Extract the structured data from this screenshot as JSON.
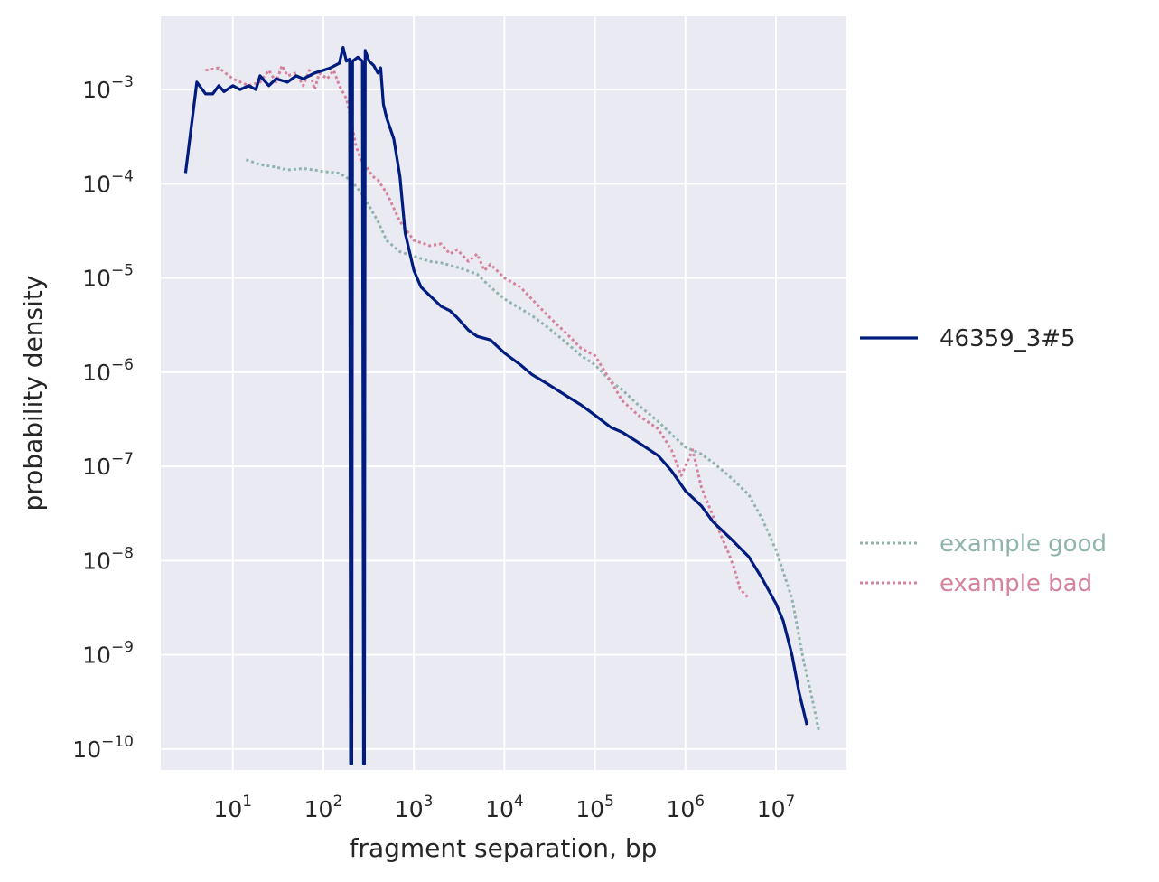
{
  "chart_data": {
    "type": "line",
    "xlabel": "fragment separation, bp",
    "ylabel": "probability density",
    "x_scale": "log",
    "y_scale": "log",
    "xlim": [
      1.6,
      60000000
    ],
    "ylim": [
      6e-11,
      0.006
    ],
    "x_ticks": [
      {
        "base": "10",
        "exp": "1",
        "value": 10
      },
      {
        "base": "10",
        "exp": "2",
        "value": 100
      },
      {
        "base": "10",
        "exp": "3",
        "value": 1000
      },
      {
        "base": "10",
        "exp": "4",
        "value": 10000
      },
      {
        "base": "10",
        "exp": "5",
        "value": 100000
      },
      {
        "base": "10",
        "exp": "6",
        "value": 1000000
      },
      {
        "base": "10",
        "exp": "7",
        "value": 10000000
      }
    ],
    "y_ticks": [
      {
        "base": "10",
        "exp": "−3",
        "value": 0.001
      },
      {
        "base": "10",
        "exp": "−4",
        "value": 0.0001
      },
      {
        "base": "10",
        "exp": "−5",
        "value": 1e-05
      },
      {
        "base": "10",
        "exp": "−6",
        "value": 1e-06
      },
      {
        "base": "10",
        "exp": "−7",
        "value": 1e-07
      },
      {
        "base": "10",
        "exp": "−8",
        "value": 1e-08
      },
      {
        "base": "10",
        "exp": "−9",
        "value": 1e-09
      },
      {
        "base": "10",
        "exp": "−10",
        "value": 1e-10
      }
    ],
    "grid": true,
    "legend_placement": "right",
    "series": [
      {
        "name": "46359_3#5",
        "color": "#001c7f",
        "style": "solid",
        "points": [
          [
            3,
            0.00013
          ],
          [
            4,
            0.0012
          ],
          [
            5,
            0.0009
          ],
          [
            6,
            0.0009
          ],
          [
            7,
            0.0011
          ],
          [
            8,
            0.00095
          ],
          [
            10,
            0.0011
          ],
          [
            12,
            0.001
          ],
          [
            15,
            0.0011
          ],
          [
            18,
            0.001
          ],
          [
            20,
            0.0014
          ],
          [
            25,
            0.0011
          ],
          [
            30,
            0.0013
          ],
          [
            40,
            0.0012
          ],
          [
            50,
            0.0014
          ],
          [
            60,
            0.0013
          ],
          [
            80,
            0.0015
          ],
          [
            100,
            0.0016
          ],
          [
            120,
            0.0017
          ],
          [
            150,
            0.0019
          ],
          [
            165,
            0.0028
          ],
          [
            180,
            0.002
          ],
          [
            195,
            0.0021
          ],
          [
            200,
            7e-11
          ],
          [
            206,
            7e-11
          ],
          [
            210,
            0.002
          ],
          [
            240,
            0.0022
          ],
          [
            270,
            0.002
          ],
          [
            278,
            7e-11
          ],
          [
            284,
            7e-11
          ],
          [
            290,
            0.0026
          ],
          [
            320,
            0.002
          ],
          [
            360,
            0.0018
          ],
          [
            400,
            0.0015
          ],
          [
            430,
            0.0017
          ],
          [
            460,
            0.0007
          ],
          [
            500,
            0.0005
          ],
          [
            600,
            0.0003
          ],
          [
            700,
            0.00012
          ],
          [
            800,
            3e-05
          ],
          [
            1000,
            1.2e-05
          ],
          [
            1200,
            8e-06
          ],
          [
            1500,
            6.5e-06
          ],
          [
            2000,
            5e-06
          ],
          [
            2500,
            4.5e-06
          ],
          [
            3000,
            3.8e-06
          ],
          [
            4000,
            2.8e-06
          ],
          [
            5000,
            2.4e-06
          ],
          [
            7000,
            2.2e-06
          ],
          [
            10000,
            1.6e-06
          ],
          [
            15000,
            1.2e-06
          ],
          [
            20000,
            9.5e-07
          ],
          [
            30000,
            7.5e-07
          ],
          [
            50000,
            5.5e-07
          ],
          [
            70000,
            4.5e-07
          ],
          [
            100000,
            3.5e-07
          ],
          [
            150000,
            2.6e-07
          ],
          [
            200000,
            2.3e-07
          ],
          [
            300000,
            1.8e-07
          ],
          [
            500000,
            1.3e-07
          ],
          [
            700000,
            9e-08
          ],
          [
            1000000,
            5.5e-08
          ],
          [
            1500000,
            3.8e-08
          ],
          [
            2000000,
            2.6e-08
          ],
          [
            3000000,
            1.8e-08
          ],
          [
            5000000,
            1.1e-08
          ],
          [
            7000000,
            6.5e-09
          ],
          [
            10000000,
            3.5e-09
          ],
          [
            12000000,
            2.3e-09
          ],
          [
            15000000,
            1e-09
          ],
          [
            18000000,
            4e-10
          ],
          [
            22000000,
            1.8e-10
          ]
        ]
      },
      {
        "name": "example good",
        "color": "#8fb4ac",
        "style": "dotted",
        "points": [
          [
            14,
            0.00018
          ],
          [
            20,
            0.00016
          ],
          [
            30,
            0.00015
          ],
          [
            40,
            0.00014
          ],
          [
            60,
            0.000145
          ],
          [
            80,
            0.00014
          ],
          [
            100,
            0.000135
          ],
          [
            150,
            0.00013
          ],
          [
            200,
            0.00011
          ],
          [
            250,
            8.5e-05
          ],
          [
            300,
            6.5e-05
          ],
          [
            400,
            4e-05
          ],
          [
            500,
            2.5e-05
          ],
          [
            700,
            1.9e-05
          ],
          [
            1000,
            1.7e-05
          ],
          [
            1500,
            1.5e-05
          ],
          [
            2000,
            1.45e-05
          ],
          [
            3000,
            1.3e-05
          ],
          [
            5000,
            1.1e-05
          ],
          [
            7000,
            8e-06
          ],
          [
            10000,
            6e-06
          ],
          [
            20000,
            4e-06
          ],
          [
            30000,
            3e-06
          ],
          [
            50000,
            2e-06
          ],
          [
            70000,
            1.5e-06
          ],
          [
            100000,
            1.2e-06
          ],
          [
            150000,
            8e-07
          ],
          [
            200000,
            6.5e-07
          ],
          [
            300000,
            4.5e-07
          ],
          [
            500000,
            3e-07
          ],
          [
            700000,
            2.2e-07
          ],
          [
            1000000,
            1.6e-07
          ],
          [
            1500000,
            1.35e-07
          ],
          [
            2000000,
            1.1e-07
          ],
          [
            3000000,
            8e-08
          ],
          [
            5000000,
            5e-08
          ],
          [
            7000000,
            2.8e-08
          ],
          [
            10000000,
            1.3e-08
          ],
          [
            15000000,
            4e-09
          ],
          [
            20000000,
            9e-10
          ],
          [
            25000000,
            3.5e-10
          ],
          [
            30000000,
            1.5e-10
          ]
        ]
      },
      {
        "name": "example bad",
        "color": "#d5829b",
        "style": "dotted",
        "points": [
          [
            5,
            0.0016
          ],
          [
            7,
            0.0017
          ],
          [
            10,
            0.0013
          ],
          [
            15,
            0.0011
          ],
          [
            20,
            0.0012
          ],
          [
            25,
            0.0016
          ],
          [
            30,
            0.0012
          ],
          [
            35,
            0.0018
          ],
          [
            40,
            0.0014
          ],
          [
            50,
            0.0015
          ],
          [
            60,
            0.0011
          ],
          [
            70,
            0.0016
          ],
          [
            80,
            0.001
          ],
          [
            90,
            0.0015
          ],
          [
            110,
            0.0013
          ],
          [
            130,
            0.0016
          ],
          [
            150,
            0.0011
          ],
          [
            180,
            0.0008
          ],
          [
            200,
            0.0005
          ],
          [
            230,
            0.00025
          ],
          [
            260,
            0.00018
          ],
          [
            300,
            0.00015
          ],
          [
            350,
            0.00012
          ],
          [
            400,
            0.00011
          ],
          [
            500,
            8e-05
          ],
          [
            700,
            4e-05
          ],
          [
            1000,
            2.5e-05
          ],
          [
            1500,
            2.2e-05
          ],
          [
            2000,
            2.3e-05
          ],
          [
            2500,
            1.8e-05
          ],
          [
            3000,
            2e-05
          ],
          [
            4000,
            1.5e-05
          ],
          [
            5000,
            1.8e-05
          ],
          [
            6000,
            1.2e-05
          ],
          [
            7000,
            1.4e-05
          ],
          [
            10000,
            1e-05
          ],
          [
            15000,
            8e-06
          ],
          [
            20000,
            6e-06
          ],
          [
            30000,
            4e-06
          ],
          [
            50000,
            2.5e-06
          ],
          [
            70000,
            1.8e-06
          ],
          [
            100000,
            1.5e-06
          ],
          [
            150000,
            8e-07
          ],
          [
            200000,
            5e-07
          ],
          [
            300000,
            3.5e-07
          ],
          [
            500000,
            2.5e-07
          ],
          [
            700000,
            1.5e-07
          ],
          [
            900000,
            8e-08
          ],
          [
            1200000,
            1.5e-07
          ],
          [
            1500000,
            6e-08
          ],
          [
            2000000,
            3e-08
          ],
          [
            2500000,
            1.8e-08
          ],
          [
            3000000,
            1.2e-08
          ],
          [
            3500000,
            8e-09
          ],
          [
            4000000,
            5e-09
          ],
          [
            5000000,
            4e-09
          ]
        ]
      }
    ]
  }
}
